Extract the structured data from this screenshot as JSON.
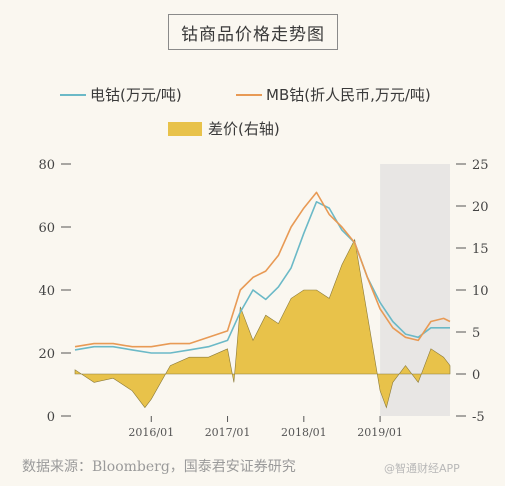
{
  "title": "钴商品价格走势图",
  "legend": {
    "series1": "电钴(万元/吨)",
    "series2": "MB钴(折人民币,万元/吨)",
    "series3": "差价(右轴)"
  },
  "source": "数据来源：Bloomberg，国泰君安证券研究",
  "watermark": "@智通财经APP",
  "colors": {
    "electro": "#6bb9c7",
    "mb": "#e89a55",
    "spread": "#e8c24a",
    "shade": "#e8e6e4",
    "axis": "#555555"
  },
  "chart_data": {
    "type": "line",
    "x_start": "2015/01",
    "x_end": "2019/12",
    "x_ticks": [
      "2016/01",
      "2017/01",
      "2018/01",
      "2019/01"
    ],
    "ylim": [
      0,
      80
    ],
    "yticks": [
      0,
      20,
      40,
      60,
      80
    ],
    "y2lim": [
      -5,
      25
    ],
    "y2ticks": [
      -5,
      0,
      5,
      10,
      15,
      20,
      25
    ],
    "highlight": {
      "from": "2019/01",
      "to": "2019/12"
    },
    "series": [
      {
        "name": "电钴(万元/吨)",
        "axis": "left",
        "x": [
          "2015/01",
          "2015/04",
          "2015/07",
          "2015/10",
          "2016/01",
          "2016/04",
          "2016/07",
          "2016/10",
          "2017/01",
          "2017/03",
          "2017/05",
          "2017/07",
          "2017/09",
          "2017/11",
          "2018/01",
          "2018/03",
          "2018/05",
          "2018/07",
          "2018/09",
          "2018/11",
          "2019/01",
          "2019/03",
          "2019/05",
          "2019/07",
          "2019/09",
          "2019/11",
          "2019/12"
        ],
        "values": [
          21,
          22,
          22,
          21,
          20,
          20,
          21,
          22,
          24,
          33,
          40,
          37,
          41,
          47,
          58,
          68,
          66,
          59,
          55,
          44,
          36,
          30,
          26,
          25,
          28,
          28,
          28
        ]
      },
      {
        "name": "MB钴(折人民币,万元/吨)",
        "axis": "left",
        "x": [
          "2015/01",
          "2015/04",
          "2015/07",
          "2015/10",
          "2016/01",
          "2016/04",
          "2016/07",
          "2016/10",
          "2017/01",
          "2017/03",
          "2017/05",
          "2017/07",
          "2017/09",
          "2017/11",
          "2018/01",
          "2018/03",
          "2018/05",
          "2018/07",
          "2018/09",
          "2018/11",
          "2019/01",
          "2019/03",
          "2019/05",
          "2019/07",
          "2019/09",
          "2019/11",
          "2019/12"
        ],
        "values": [
          22,
          23,
          23,
          22,
          22,
          23,
          23,
          25,
          27,
          40,
          44,
          46,
          51,
          60,
          66,
          71,
          64,
          60,
          55,
          44,
          34,
          28,
          25,
          24,
          30,
          31,
          30
        ]
      },
      {
        "name": "差价(右轴)",
        "axis": "right",
        "type": "area",
        "x": [
          "2015/01",
          "2015/04",
          "2015/07",
          "2015/10",
          "2015/12",
          "2016/01",
          "2016/04",
          "2016/07",
          "2016/10",
          "2017/01",
          "2017/02",
          "2017/03",
          "2017/05",
          "2017/07",
          "2017/09",
          "2017/11",
          "2018/01",
          "2018/03",
          "2018/05",
          "2018/07",
          "2018/09",
          "2018/11",
          "2019/01",
          "2019/02",
          "2019/03",
          "2019/05",
          "2019/07",
          "2019/09",
          "2019/11",
          "2019/12"
        ],
        "values": [
          0.5,
          -1,
          -0.5,
          -2,
          -4,
          -3,
          1,
          2,
          2,
          3,
          -1,
          8,
          4,
          7,
          6,
          9,
          10,
          10,
          9,
          13,
          16,
          7,
          -2,
          -4,
          -1,
          1,
          -1,
          3,
          2,
          1
        ]
      }
    ]
  }
}
